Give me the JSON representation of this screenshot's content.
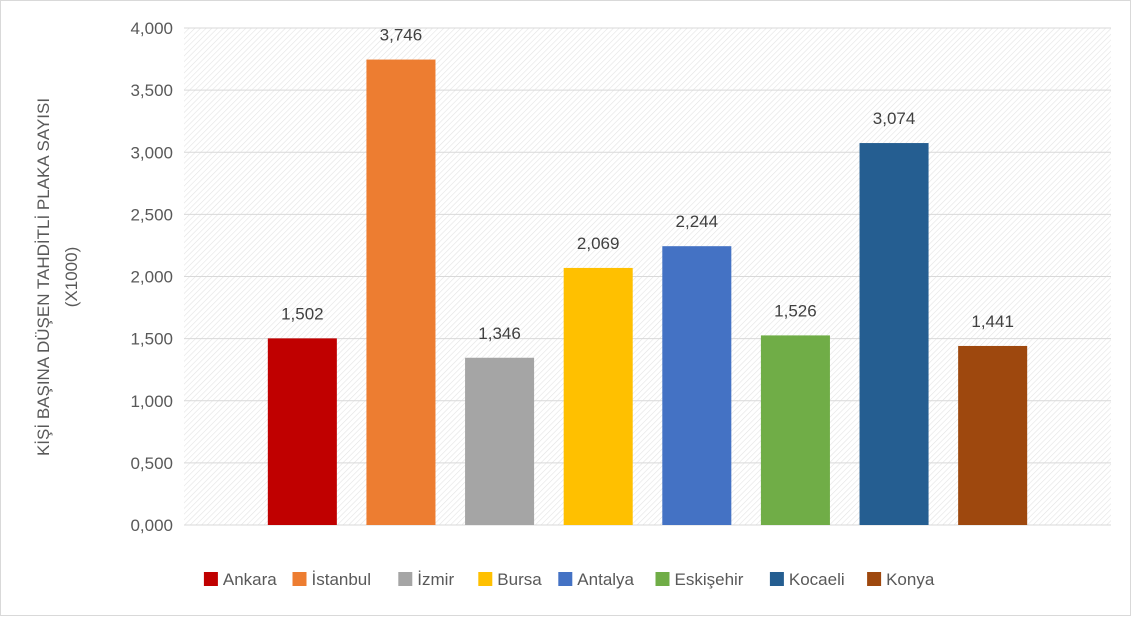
{
  "chart_data": {
    "type": "bar",
    "categories": [
      "Ankara",
      "İstanbul",
      "İzmir",
      "Bursa",
      "Antalya",
      "Eskişehir",
      "Kocaeli",
      "Konya"
    ],
    "values": [
      1.502,
      3.746,
      1.346,
      2.069,
      2.244,
      1.526,
      3.074,
      1.441
    ],
    "data_labels": [
      "1,502",
      "3,746",
      "1,346",
      "2,069",
      "2,244",
      "1,526",
      "3,074",
      "1,441"
    ],
    "colors": [
      "#c00000",
      "#ed7d31",
      "#a5a5a5",
      "#ffc000",
      "#4472c4",
      "#70ad47",
      "#255e91",
      "#9e480e"
    ],
    "title": "",
    "xlabel": "",
    "ylabel_line1": "KİŞİ BAŞINA DÜŞEN TAHDİTLİ PLAKA SAYISI",
    "ylabel_line2": "(X1000)",
    "ylim": [
      0,
      4
    ],
    "yticks": [
      0,
      0.5,
      1,
      1.5,
      2,
      2.5,
      3,
      3.5,
      4
    ],
    "ytick_labels": [
      "0,000",
      "0,500",
      "1,000",
      "1,500",
      "2,000",
      "2,500",
      "3,000",
      "3,500",
      "4,000"
    ],
    "grid": true,
    "legend_position": "bottom"
  }
}
